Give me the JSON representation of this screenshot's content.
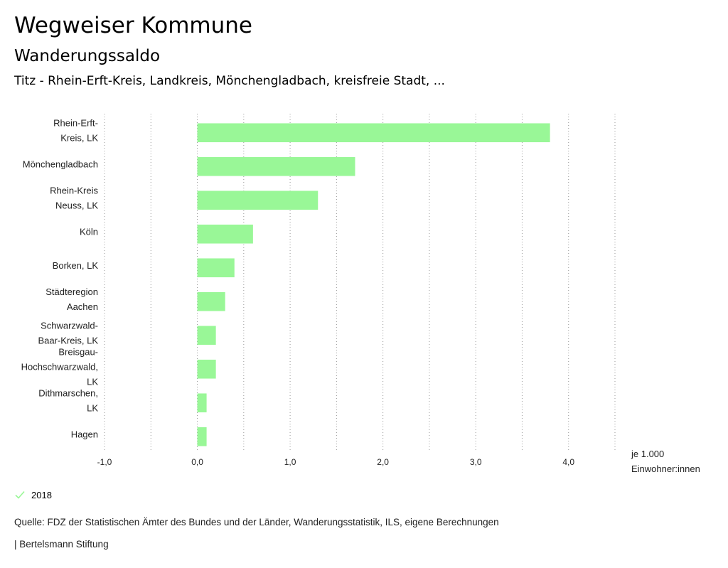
{
  "header": {
    "title": "Wegweiser Kommune",
    "subtitle": "Wanderungssaldo",
    "description": "Titz - Rhein-Erft-Kreis, Landkreis, Mönchengladbach, kreisfreie Stadt, ..."
  },
  "legend": {
    "label": "2018",
    "color": "#99f797"
  },
  "footer": {
    "source": "Quelle: FDZ der Statistischen Ämter des Bundes und der Länder, Wanderungsstatistik, ILS, eigene Berechnungen",
    "brand": "| Bertelsmann Stiftung"
  },
  "chart_data": {
    "type": "bar",
    "orientation": "horizontal",
    "categories": [
      [
        "Rhein-Erft-",
        "Kreis, LK"
      ],
      [
        "Mönchengladbach"
      ],
      [
        "Rhein-Kreis",
        "Neuss, LK"
      ],
      [
        "Köln"
      ],
      [
        "Borken, LK"
      ],
      [
        "Städteregion",
        "Aachen"
      ],
      [
        "Schwarzwald-",
        "Baar-Kreis, LK"
      ],
      [
        "Breisgau-",
        "Hochschwarzwald,",
        "LK"
      ],
      [
        "Dithmarschen,",
        "LK"
      ],
      [
        "Hagen"
      ]
    ],
    "series": [
      {
        "name": "2018",
        "values": [
          3.8,
          1.7,
          1.3,
          0.6,
          0.4,
          0.3,
          0.2,
          0.2,
          0.1,
          0.1
        ]
      }
    ],
    "xlim": [
      -1.0,
      4.5
    ],
    "ticks": [
      -1.0,
      0.0,
      1.0,
      2.0,
      3.0,
      4.0
    ],
    "tick_labels": [
      "-1,0",
      "0,0",
      "1,0",
      "2,0",
      "3,0",
      "4,0"
    ],
    "unit_label": [
      "je 1.000",
      "Einwohner:innen"
    ],
    "bar_color": "#99f797",
    "grid": true
  }
}
